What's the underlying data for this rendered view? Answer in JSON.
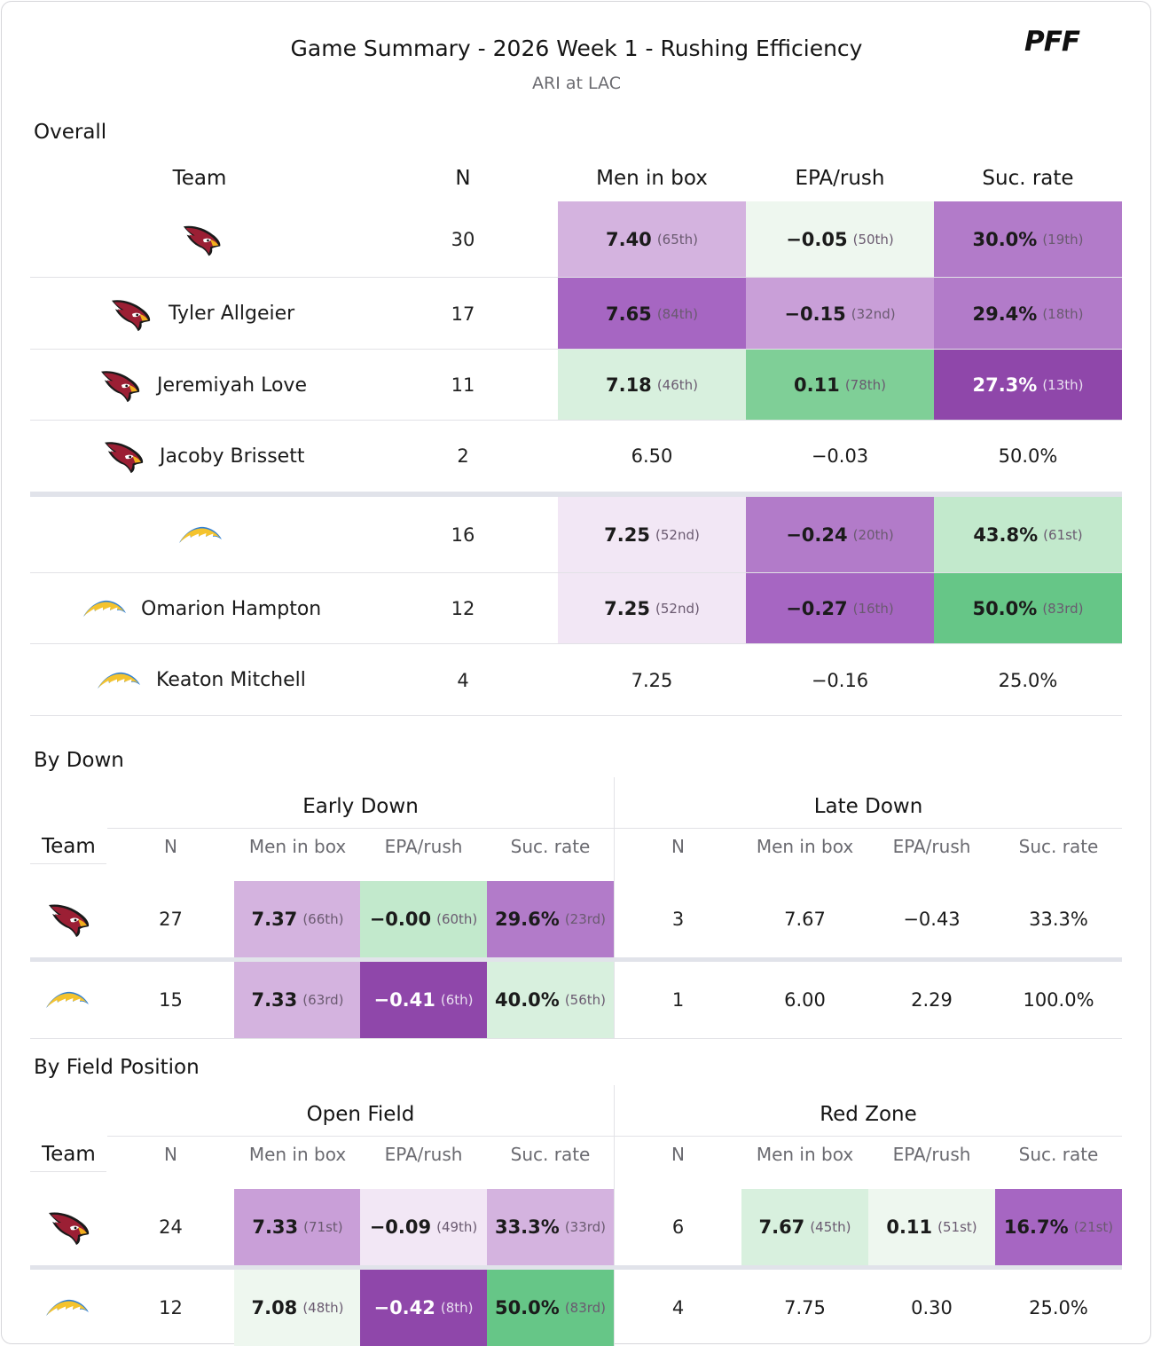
{
  "header": {
    "title": "Game Summary - 2026 Week 1 - Rushing Efficiency",
    "subtitle": "ARI at LAC",
    "logo_text": "PFF"
  },
  "sections": {
    "overall": "Overall",
    "by_down": "By Down",
    "by_field": "By Field Position"
  },
  "colors": {
    "purple_1": "#f2e7f5",
    "purple_2": "#d4b3df",
    "purple_3": "#c99fd8",
    "purple_4": "#b27bc9",
    "purple_5": "#a666c2",
    "purple_6": "#8f47aa",
    "green_1": "#eef7ef",
    "green_2": "#d8f0de",
    "green_3": "#c2e9cc",
    "green_4": "#7fcf97",
    "green_5": "#66c687",
    "separator": "#e1e3ea"
  },
  "overall": {
    "columns": [
      "Team",
      "N",
      "Men in box",
      "EPA/rush",
      "Suc. rate"
    ],
    "rows": [
      {
        "team": "ARI",
        "name": "",
        "n": "30",
        "box": "7.40",
        "box_rank": "(65th)",
        "epa": "−0.05",
        "epa_rank": "(50th)",
        "suc": "30.0%",
        "suc_rank": "(19th)"
      },
      {
        "team": "ARI",
        "name": "Tyler Allgeier",
        "n": "17",
        "box": "7.65",
        "box_rank": "(84th)",
        "epa": "−0.15",
        "epa_rank": "(32nd)",
        "suc": "29.4%",
        "suc_rank": "(18th)"
      },
      {
        "team": "ARI",
        "name": "Jeremiyah Love",
        "n": "11",
        "box": "7.18",
        "box_rank": "(46th)",
        "epa": "0.11",
        "epa_rank": "(78th)",
        "suc": "27.3%",
        "suc_rank": "(13th)"
      },
      {
        "team": "ARI",
        "name": "Jacoby Brissett",
        "n": "2",
        "box": "6.50",
        "box_rank": "",
        "epa": "−0.03",
        "epa_rank": "",
        "suc": "50.0%",
        "suc_rank": ""
      },
      {
        "team": "LAC",
        "name": "",
        "n": "16",
        "box": "7.25",
        "box_rank": "(52nd)",
        "epa": "−0.24",
        "epa_rank": "(20th)",
        "suc": "43.8%",
        "suc_rank": "(61st)"
      },
      {
        "team": "LAC",
        "name": "Omarion Hampton",
        "n": "12",
        "box": "7.25",
        "box_rank": "(52nd)",
        "epa": "−0.27",
        "epa_rank": "(16th)",
        "suc": "50.0%",
        "suc_rank": "(83rd)"
      },
      {
        "team": "LAC",
        "name": "Keaton Mitchell",
        "n": "4",
        "box": "7.25",
        "box_rank": "",
        "epa": "−0.16",
        "epa_rank": "",
        "suc": "25.0%",
        "suc_rank": ""
      }
    ]
  },
  "by_down": {
    "team_label": "Team",
    "group_left": "Early Down",
    "group_right": "Late Down",
    "columns": [
      "N",
      "Men in box",
      "EPA/rush",
      "Suc. rate"
    ],
    "rows": [
      {
        "team": "ARI",
        "l_n": "27",
        "l_box": "7.37",
        "l_box_rank": "(66th)",
        "l_epa": "−0.00",
        "l_epa_rank": "(60th)",
        "l_suc": "29.6%",
        "l_suc_rank": "(23rd)",
        "r_n": "3",
        "r_box": "7.67",
        "r_epa": "−0.43",
        "r_suc": "33.3%"
      },
      {
        "team": "LAC",
        "l_n": "15",
        "l_box": "7.33",
        "l_box_rank": "(63rd)",
        "l_epa": "−0.41",
        "l_epa_rank": "(6th)",
        "l_suc": "40.0%",
        "l_suc_rank": "(56th)",
        "r_n": "1",
        "r_box": "6.00",
        "r_epa": "2.29",
        "r_suc": "100.0%"
      }
    ]
  },
  "by_field": {
    "team_label": "Team",
    "group_left": "Open Field",
    "group_right": "Red Zone",
    "columns": [
      "N",
      "Men in box",
      "EPA/rush",
      "Suc. rate"
    ],
    "rows": [
      {
        "team": "ARI",
        "l_n": "24",
        "l_box": "7.33",
        "l_box_rank": "(71st)",
        "l_epa": "−0.09",
        "l_epa_rank": "(49th)",
        "l_suc": "33.3%",
        "l_suc_rank": "(33rd)",
        "r_n": "6",
        "r_box": "7.67",
        "r_box_rank": "(45th)",
        "r_epa": "0.11",
        "r_epa_rank": "(51st)",
        "r_suc": "16.7%",
        "r_suc_rank": "(21st)"
      },
      {
        "team": "LAC",
        "l_n": "12",
        "l_box": "7.08",
        "l_box_rank": "(48th)",
        "l_epa": "−0.42",
        "l_epa_rank": "(8th)",
        "l_suc": "50.0%",
        "l_suc_rank": "(83rd)",
        "r_n": "4",
        "r_box": "7.75",
        "r_epa": "0.30",
        "r_suc": "25.0%"
      }
    ]
  }
}
